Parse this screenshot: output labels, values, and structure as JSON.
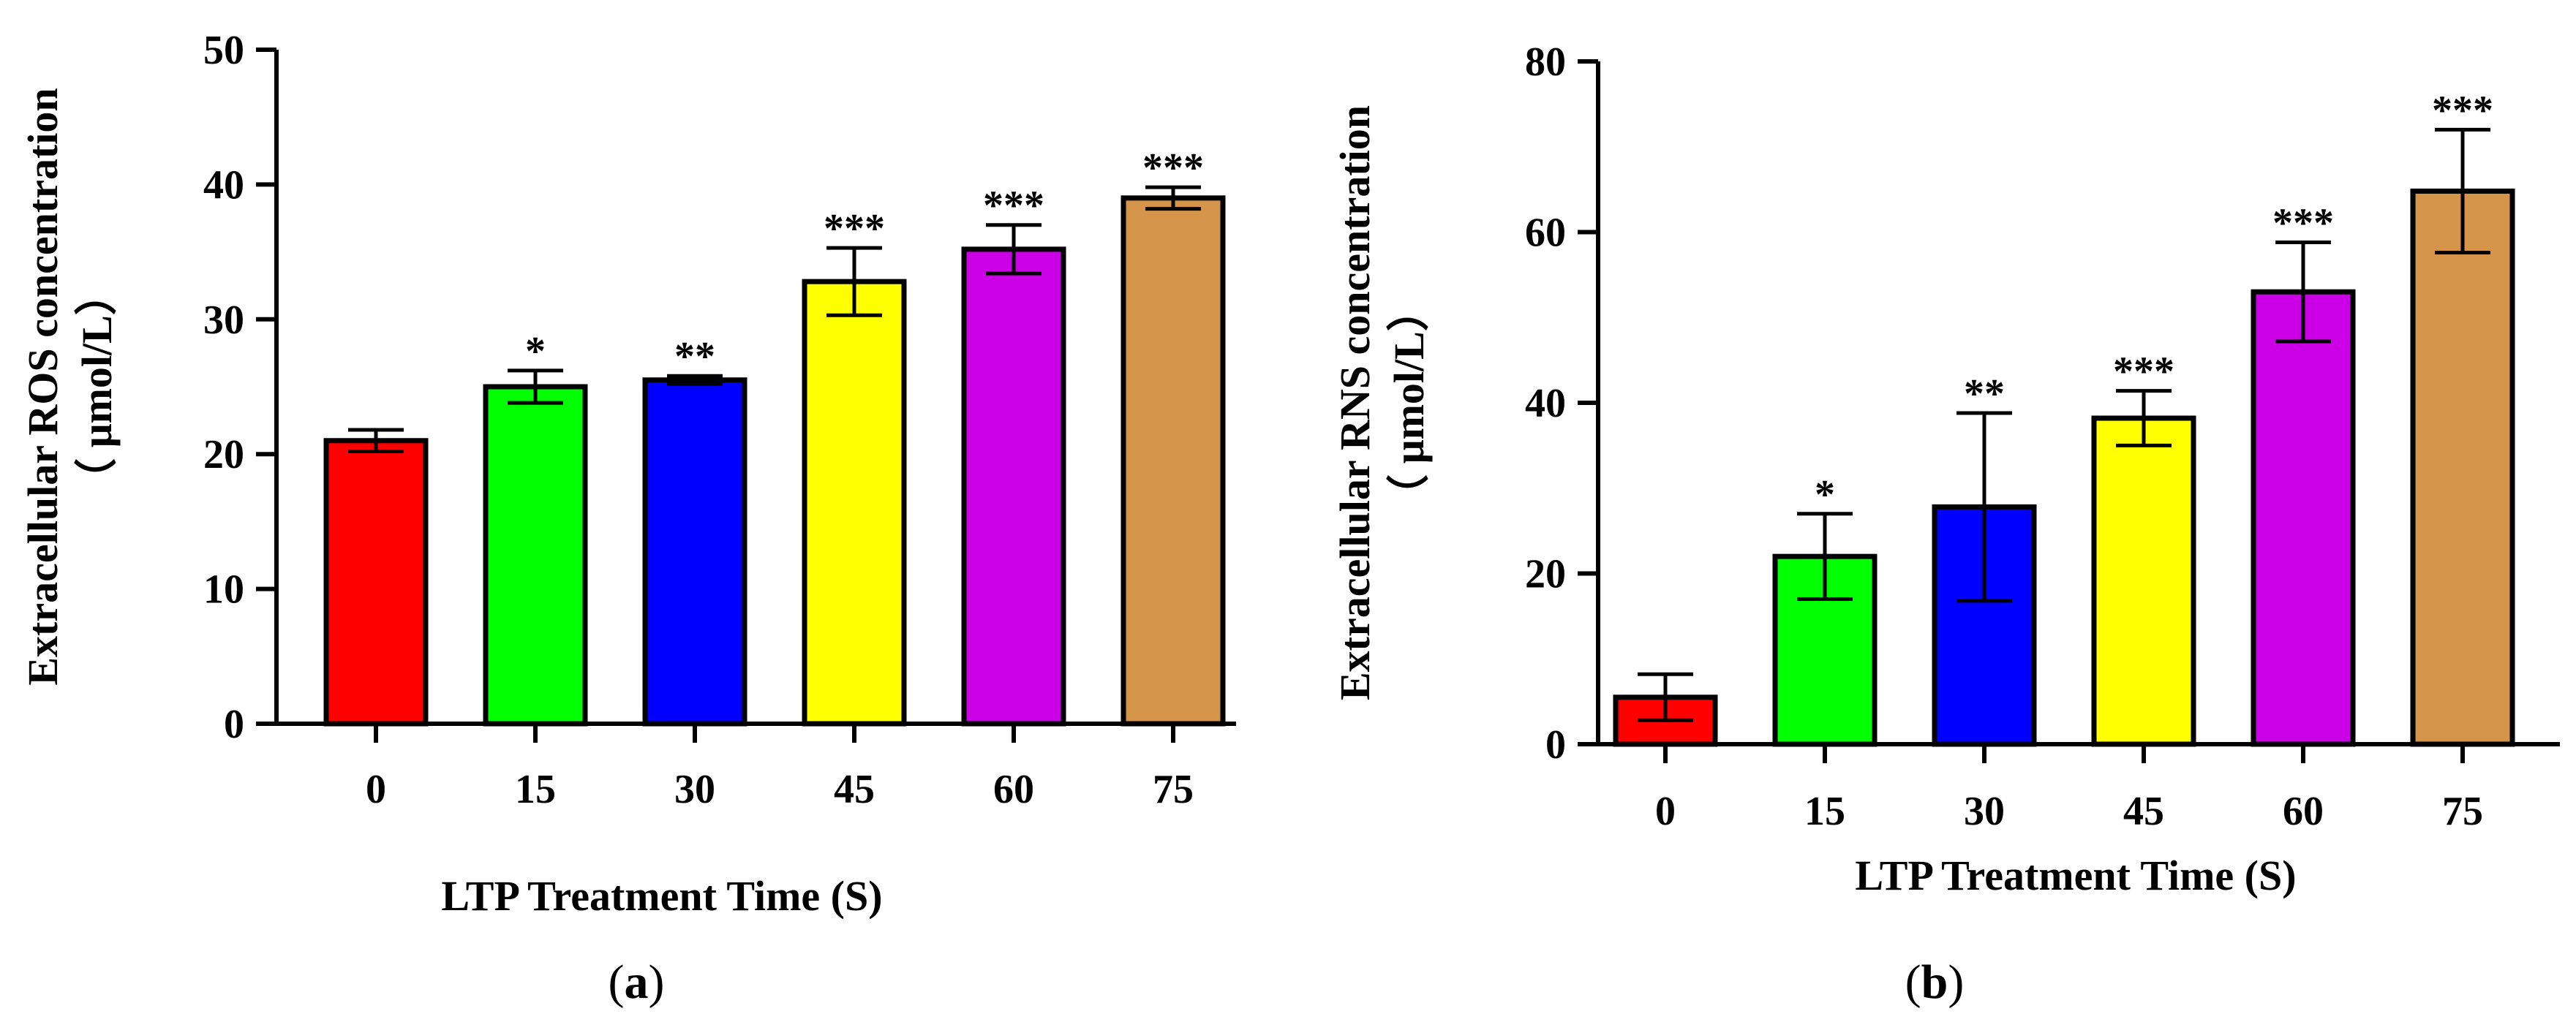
{
  "chart_data": [
    {
      "type": "bar",
      "panel_label": "a",
      "categories": [
        "0",
        "15",
        "30",
        "45",
        "60",
        "75"
      ],
      "values": [
        21,
        25,
        25.5,
        32.8,
        35.2,
        39
      ],
      "errors": [
        0.8,
        1.2,
        0.3,
        2.5,
        1.8,
        0.8
      ],
      "significance": [
        "",
        "*",
        "**",
        "***",
        "***",
        "***"
      ],
      "colors": [
        "#ff0000",
        "#00ff00",
        "#0000ff",
        "#ffff00",
        "#cc00e6",
        "#d4944a"
      ],
      "xlabel": "LTP Treatment Time (S)",
      "ylabel_line1": "Extracellular ROS concentration",
      "ylabel_line2": "（ μmol/L）",
      "ylim": [
        0,
        50
      ],
      "yticks": [
        "0",
        "10",
        "20",
        "30",
        "40",
        "50"
      ],
      "grid": false
    },
    {
      "type": "bar",
      "panel_label": "b",
      "categories": [
        "0",
        "15",
        "30",
        "45",
        "60",
        "75"
      ],
      "values": [
        5.5,
        22,
        27.8,
        38.2,
        53,
        64.8
      ],
      "errors": [
        2.7,
        5,
        11,
        3.2,
        5.8,
        7.2
      ],
      "significance": [
        "",
        "*",
        "**",
        "***",
        "***",
        "***"
      ],
      "colors": [
        "#ff0000",
        "#00ff00",
        "#0000ff",
        "#ffff00",
        "#cc00e6",
        "#d4944a"
      ],
      "xlabel": "LTP Treatment Time (S)",
      "ylabel_line1": "Extracellular RNS concentration",
      "ylabel_line2": "（ μmol/L）",
      "ylim": [
        0,
        80
      ],
      "yticks": [
        "0",
        "20",
        "40",
        "60",
        "80"
      ],
      "grid": false
    }
  ]
}
